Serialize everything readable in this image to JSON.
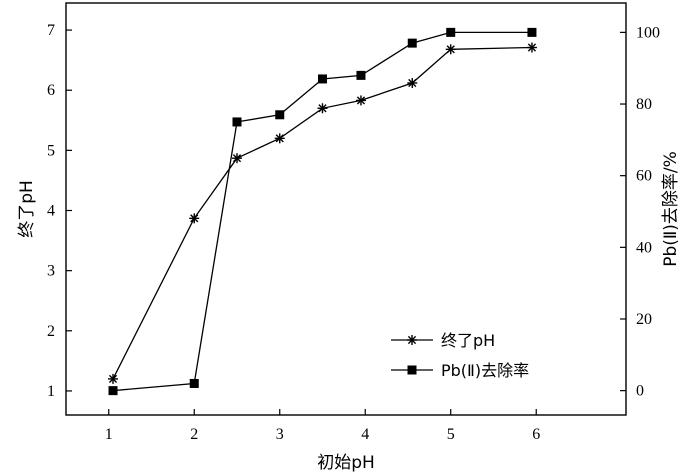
{
  "chart_data": {
    "type": "line",
    "xlabel": "初始pH",
    "ylabel": "终了pH",
    "y2label": "Pb(Ⅱ)去除率/%",
    "xlim": [
      0.5,
      7.05
    ],
    "ylim": [
      0.6,
      7.45
    ],
    "y2lim": [
      -6.8,
      108.2
    ],
    "x_ticks": [
      1,
      2,
      3,
      4,
      5,
      6
    ],
    "y_ticks": [
      1,
      2,
      3,
      4,
      5,
      6,
      7
    ],
    "y2_ticks": [
      0,
      20,
      40,
      60,
      80,
      100
    ],
    "grid": false,
    "legend_position": "bottom-right",
    "series": [
      {
        "name": "终了pH",
        "axis": "left",
        "marker": "asterisk",
        "x": [
          1.05,
          2.0,
          2.5,
          3.0,
          3.5,
          3.95,
          4.55,
          5.0,
          5.95
        ],
        "y": [
          1.2,
          3.87,
          4.87,
          5.2,
          5.7,
          5.83,
          6.12,
          6.68,
          6.71
        ]
      },
      {
        "name": "Pb(Ⅱ)去除率",
        "axis": "right",
        "marker": "square",
        "x": [
          1.05,
          2.0,
          2.5,
          3.0,
          3.5,
          3.95,
          4.55,
          5.0,
          5.95
        ],
        "y": [
          0,
          2,
          75,
          77,
          87,
          88,
          97,
          100,
          100
        ]
      }
    ]
  }
}
